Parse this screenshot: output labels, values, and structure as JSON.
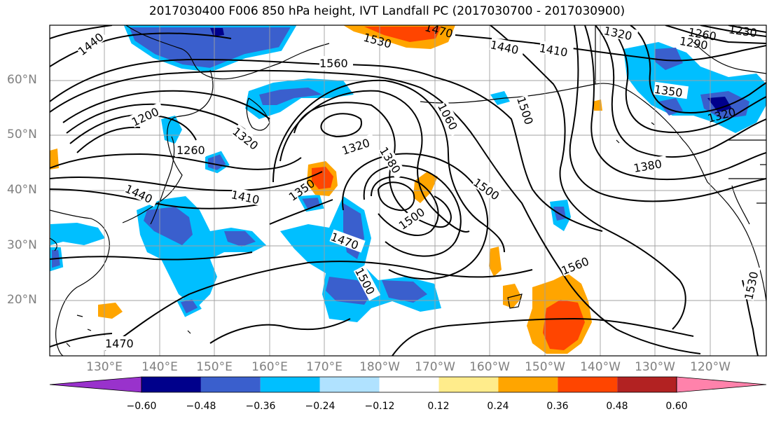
{
  "title": "2017030400 F006 850 hPa height, IVT Landfall PC (2017030700 - 2017030900)",
  "lat_labels": [
    "60°N",
    "50°N",
    "40°N",
    "30°N",
    "20°N"
  ],
  "lon_labels": [
    "130°E",
    "140°E",
    "150°E",
    "160°E",
    "170°E",
    "180°W",
    "170°W",
    "160°W",
    "150°W",
    "140°W",
    "130°W",
    "120°W"
  ],
  "colorbar": {
    "colors": [
      "#9932cc",
      "#00008b",
      "#3a5fcd",
      "#00bfff",
      "#b0e2ff",
      "#ffffff",
      "#ffec8b",
      "#ffa500",
      "#ff4500",
      "#b22222",
      "#ff82ab"
    ],
    "ticks": [
      "−0.60",
      "−0.48",
      "−0.36",
      "−0.24",
      "−0.12",
      "0.12",
      "0.24",
      "0.36",
      "0.48",
      "0.60"
    ]
  },
  "contour_labels": [
    "1440",
    "1560",
    "1530",
    "1470",
    "1440",
    "1410",
    "1320",
    "1260",
    "1290",
    "1230",
    "1200",
    "1320",
    "1260",
    "1060",
    "1500",
    "1350",
    "1320",
    "1380",
    "1380",
    "1320",
    "1500",
    "1410",
    "1440",
    "1350",
    "1470",
    "1500",
    "1560",
    "1530",
    "1470"
  ],
  "layers": {
    "coastlines": "coastlines",
    "gridlines": "gridlines",
    "height_contours": "850 hPa height",
    "ivt_shading": "IVT Landfall PC"
  }
}
